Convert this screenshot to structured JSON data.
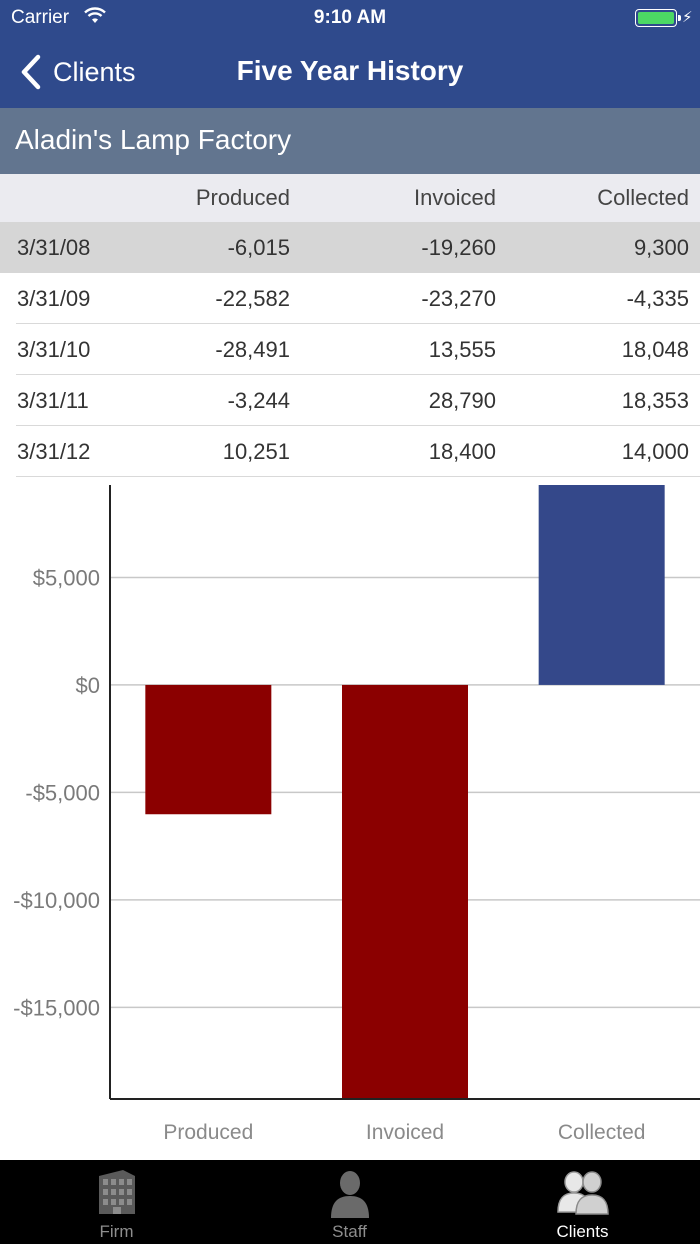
{
  "status_bar": {
    "carrier": "Carrier",
    "time": "9:10 AM"
  },
  "nav": {
    "back_label": "Clients",
    "title": "Five Year History"
  },
  "client": {
    "name": "Aladin's Lamp Factory"
  },
  "table": {
    "columns": [
      "",
      "Produced",
      "Invoiced",
      "Collected"
    ],
    "rows": [
      {
        "date": "3/31/08",
        "produced": "-6,015",
        "invoiced": "-19,260",
        "collected": "9,300",
        "selected": true
      },
      {
        "date": "3/31/09",
        "produced": "-22,582",
        "invoiced": "-23,270",
        "collected": "-4,335"
      },
      {
        "date": "3/31/10",
        "produced": "-28,491",
        "invoiced": "13,555",
        "collected": "18,048"
      },
      {
        "date": "3/31/11",
        "produced": "-3,244",
        "invoiced": "28,790",
        "collected": "18,353"
      },
      {
        "date": "3/31/12",
        "produced": "10,251",
        "invoiced": "18,400",
        "collected": "14,000"
      }
    ]
  },
  "chart_data": {
    "type": "bar",
    "categories": [
      "Produced",
      "Invoiced",
      "Collected"
    ],
    "values": [
      -6015,
      -19260,
      9300
    ],
    "bar_colors": [
      "#8b0000",
      "#8b0000",
      "#34488a"
    ],
    "tick_values": [
      5000,
      0,
      -5000,
      -10000,
      -15000
    ],
    "tick_labels": [
      "$5,000",
      "$0",
      "-$5,000",
      "-$10,000",
      "-$15,000"
    ],
    "ylim": [
      -19260,
      9300
    ],
    "grid": true,
    "title": "",
    "xlabel": "",
    "ylabel": ""
  },
  "tabbar": {
    "tabs": [
      {
        "label": "Firm",
        "icon": "building-icon",
        "active": false
      },
      {
        "label": "Staff",
        "icon": "person-icon",
        "active": false
      },
      {
        "label": "Clients",
        "icon": "people-icon",
        "active": true
      }
    ]
  },
  "colors": {
    "nav_bg": "#2f4a8c",
    "client_bar_bg": "#62758f",
    "negative_bar": "#8b0000",
    "positive_bar": "#34488a"
  }
}
